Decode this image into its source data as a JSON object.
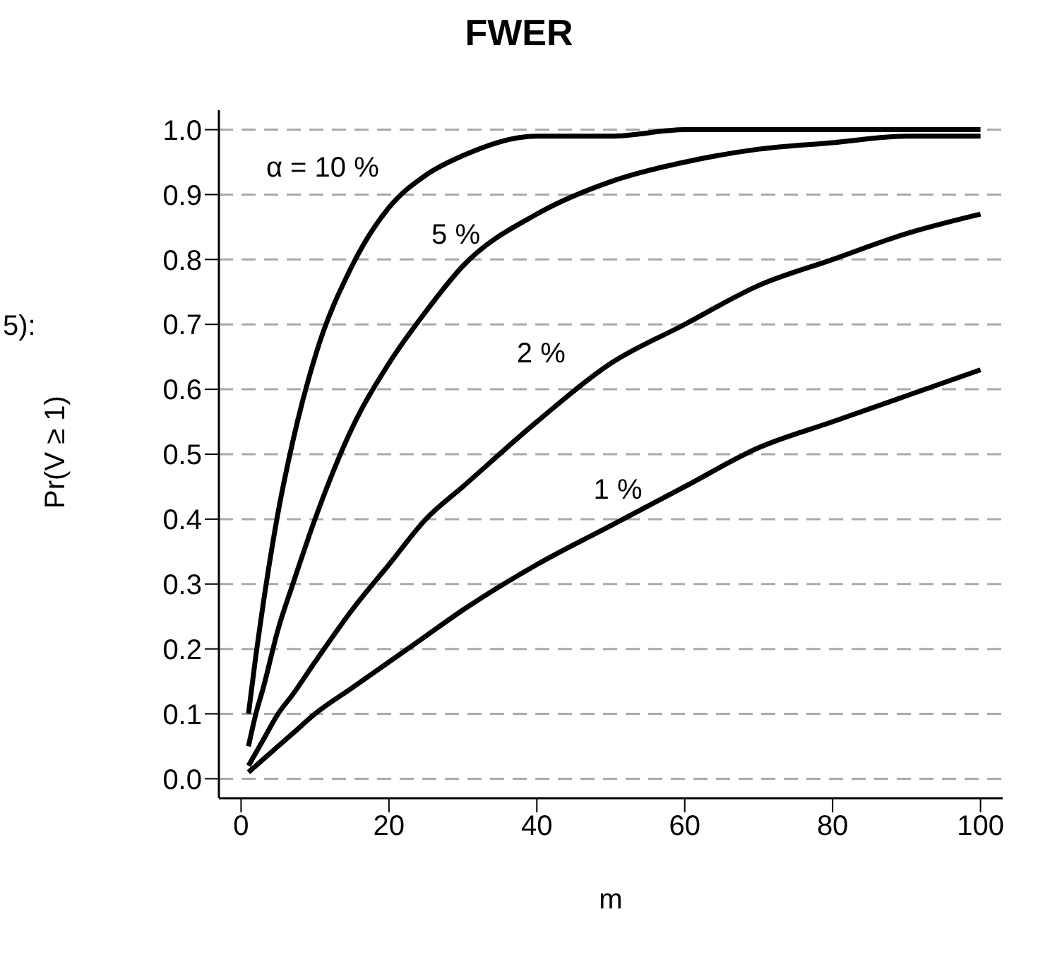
{
  "chart_data": {
    "type": "line",
    "title": "FWER",
    "xlabel": "m",
    "ylabel": "Pr(V ≥ 1)",
    "x": [
      1,
      2,
      3,
      5,
      7,
      10,
      15,
      20,
      25,
      30,
      40,
      50,
      60,
      70,
      80,
      90,
      100
    ],
    "series": [
      {
        "name": "α = 10 %",
        "color": "#000000",
        "values": [
          0.1,
          0.19,
          0.27,
          0.41,
          0.52,
          0.65,
          0.79,
          0.88,
          0.93,
          0.96,
          0.99,
          0.99,
          1.0,
          1.0,
          1.0,
          1.0,
          1.0
        ]
      },
      {
        "name": "5 %",
        "color": "#000000",
        "values": [
          0.05,
          0.1,
          0.14,
          0.23,
          0.3,
          0.4,
          0.54,
          0.64,
          0.72,
          0.79,
          0.87,
          0.92,
          0.95,
          0.97,
          0.98,
          0.99,
          0.99
        ]
      },
      {
        "name": "2 %",
        "color": "#000000",
        "values": [
          0.02,
          0.04,
          0.06,
          0.1,
          0.13,
          0.18,
          0.26,
          0.33,
          0.4,
          0.45,
          0.55,
          0.64,
          0.7,
          0.76,
          0.8,
          0.84,
          0.87
        ]
      },
      {
        "name": "1 %",
        "color": "#000000",
        "values": [
          0.01,
          0.02,
          0.03,
          0.05,
          0.07,
          0.1,
          0.14,
          0.18,
          0.22,
          0.26,
          0.33,
          0.39,
          0.45,
          0.51,
          0.55,
          0.59,
          0.63
        ]
      }
    ],
    "annotations": [
      "5):"
    ],
    "xlim": [
      -3,
      103
    ],
    "xticks": [
      0,
      20,
      40,
      60,
      80,
      100
    ],
    "ylim": [
      -0.03,
      1.03
    ],
    "yticks": [
      {
        "value": 0,
        "label": "0.0"
      },
      0.1,
      0.2,
      0.3,
      0.4,
      0.5,
      0.6,
      0.7,
      0.8,
      0.9,
      {
        "value": 1,
        "label": "1.0"
      }
    ],
    "grid": "y",
    "line_style": "solid",
    "marker": "none"
  }
}
